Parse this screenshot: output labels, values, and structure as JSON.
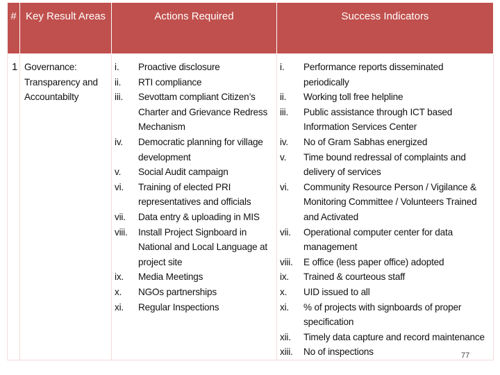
{
  "table": {
    "headers": [
      "#",
      "Key Result Areas",
      "Actions Required",
      "Success Indicators"
    ],
    "rows": [
      {
        "number": "1",
        "area": "Governance: Transparency and Accountabilty",
        "actions": [
          {
            "marker": "i.",
            "text": "Proactive disclosure"
          },
          {
            "marker": "ii.",
            "text": "RTI compliance"
          },
          {
            "marker": "iii.",
            "text": "Sevottam compliant Citizen’s Charter and Grievance Redress Mechanism"
          },
          {
            "marker": "iv.",
            "text": "Democratic planning for village development"
          },
          {
            "marker": "v.",
            "text": "Social Audit campaign"
          },
          {
            "marker": "vi.",
            "text": "Training of elected PRI representatives and officials"
          },
          {
            "marker": "vii.",
            "text": "Data entry & uploading in MIS"
          },
          {
            "marker": "viii.",
            "text": "Install Project Signboard in National and Local Language at project site"
          },
          {
            "marker": "ix.",
            "text": "Media Meetings"
          },
          {
            "marker": "x.",
            "text": "NGOs partnerships"
          },
          {
            "marker": "xi.",
            "text": "Regular Inspections"
          }
        ],
        "indicators": [
          {
            "marker": "i.",
            "text": "Performance reports disseminated periodically"
          },
          {
            "marker": "ii.",
            "text": "Working toll free helpline"
          },
          {
            "marker": "iii.",
            "text": "Public assistance through ICT based Information Services Center"
          },
          {
            "marker": "iv.",
            "text": "No of Gram Sabhas energized"
          },
          {
            "marker": "v.",
            "text": "Time bound redressal of complaints and delivery of services"
          },
          {
            "marker": "vi.",
            "text": "Community Resource Person / Vigilance & Monitoring Committee / Volunteers Trained and Activated"
          },
          {
            "marker": "vii.",
            "text": "Operational computer center for data management"
          },
          {
            "marker": "viii.",
            "text": "E office (less paper office) adopted"
          },
          {
            "marker": "ix.",
            "text": "Trained & courteous staff"
          },
          {
            "marker": "x.",
            "text": "UID issued to all"
          },
          {
            "marker": "xi.",
            "text": "% of projects with signboards of proper specification"
          },
          {
            "marker": "xii.",
            "text": "Timely data capture and record maintenance"
          },
          {
            "marker": "xiii.",
            "text": "No of inspections"
          }
        ]
      }
    ]
  },
  "page_number": "77"
}
